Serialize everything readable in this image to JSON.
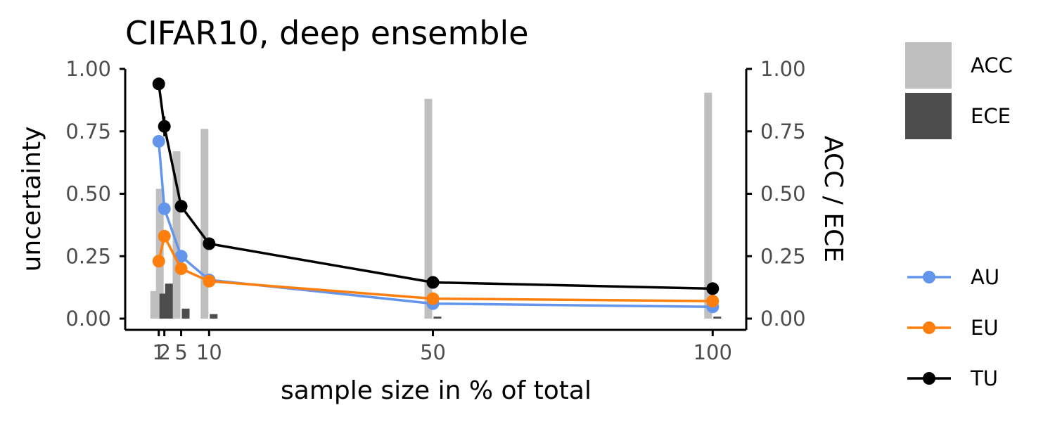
{
  "chart_data": {
    "type": "line",
    "title": "CIFAR10, deep ensemble",
    "xlabel": "sample size in % of total",
    "ylabel": "uncertainty",
    "y2label": "ACC / ECE",
    "x": [
      1,
      2,
      5,
      10,
      50,
      100
    ],
    "xticks": [
      "1",
      "2",
      "5",
      "10",
      "50",
      "100"
    ],
    "xlim": [
      -5,
      106
    ],
    "ylim": [
      -0.04,
      1.0
    ],
    "yticks": [
      "0.00",
      "0.25",
      "0.50",
      "0.75",
      "1.00"
    ],
    "y2ticks": [
      "0.00",
      "0.25",
      "0.50",
      "0.75",
      "1.00"
    ],
    "grid": false,
    "bars": [
      {
        "name": "ACC",
        "color": "#bfbfbf",
        "values": [
          0.11,
          0.52,
          0.67,
          0.76,
          0.88,
          0.905
        ]
      },
      {
        "name": "ECE",
        "color": "#4d4d4d",
        "values": [
          0.1,
          0.14,
          0.04,
          0.018,
          0.008,
          0.008
        ]
      }
    ],
    "series": [
      {
        "name": "AU",
        "color": "#6495ed",
        "values": [
          0.71,
          0.44,
          0.25,
          0.155,
          0.06,
          0.047
        ],
        "err": [
          0.02,
          0.012,
          0.01,
          0.006,
          0.004,
          0.004
        ]
      },
      {
        "name": "EU",
        "color": "#ff7f0e",
        "values": [
          0.23,
          0.33,
          0.2,
          0.15,
          0.08,
          0.07
        ],
        "err": [
          0.02,
          0.02,
          0.01,
          0.006,
          0.004,
          0.004
        ]
      },
      {
        "name": "TU",
        "color": "#000000",
        "values": [
          0.94,
          0.77,
          0.45,
          0.3,
          0.145,
          0.12
        ],
        "err": [
          0.01,
          0.04,
          0.01,
          0.006,
          0.004,
          0.004
        ]
      }
    ],
    "legend_position": "right"
  }
}
